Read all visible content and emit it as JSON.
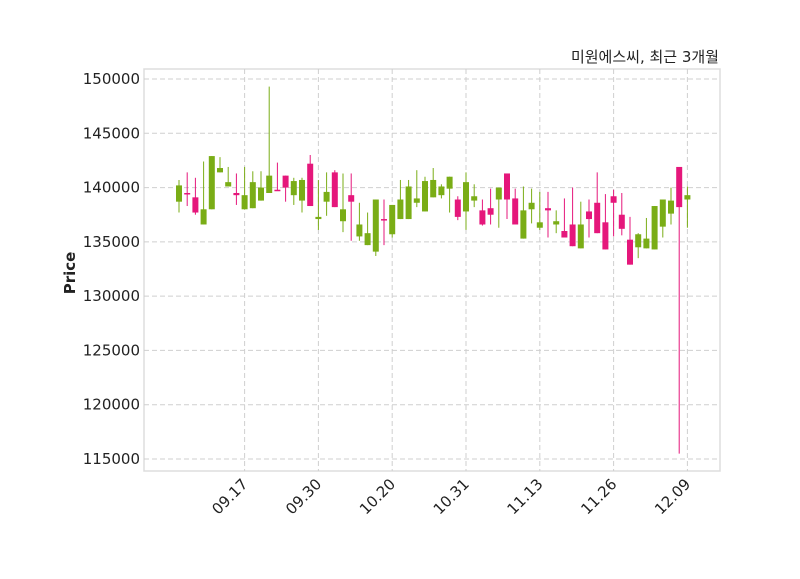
{
  "chart_data": {
    "type": "candlestick",
    "title": "미원에스씨, 최근 3개월",
    "xlabel": "",
    "ylabel": "Price",
    "ylim": [
      114000,
      151000
    ],
    "yticks": [
      115000,
      120000,
      125000,
      130000,
      135000,
      140000,
      145000,
      150000
    ],
    "xtick_labels": [
      {
        "index": 8,
        "label": "09.17"
      },
      {
        "index": 17,
        "label": "09.30"
      },
      {
        "index": 26,
        "label": "10.20"
      },
      {
        "index": 35,
        "label": "10.31"
      },
      {
        "index": 44,
        "label": "11.13"
      },
      {
        "index": 53,
        "label": "11.26"
      },
      {
        "index": 62,
        "label": "12.09"
      }
    ],
    "grid": true,
    "colors": {
      "up": "#e5177b",
      "down": "#7aad16",
      "grid": "#cfcfcf",
      "frame": "#dddddd"
    },
    "ohlc": [
      [
        140200,
        140700,
        137700,
        138700
      ],
      [
        139400,
        141400,
        138300,
        139500
      ],
      [
        137700,
        140900,
        137500,
        139100
      ],
      [
        138000,
        142400,
        136600,
        136600
      ],
      [
        142900,
        142900,
        138000,
        138000
      ],
      [
        141800,
        142800,
        141400,
        141400
      ],
      [
        140500,
        141900,
        140100,
        140100
      ],
      [
        139300,
        141300,
        138400,
        139500
      ],
      [
        139300,
        141900,
        138000,
        138000
      ],
      [
        140500,
        141500,
        138100,
        138100
      ],
      [
        140000,
        141500,
        138800,
        138800
      ],
      [
        141100,
        149300,
        139500,
        139500
      ],
      [
        139700,
        142300,
        139700,
        139800
      ],
      [
        140000,
        141100,
        138700,
        141100
      ],
      [
        140600,
        140900,
        138400,
        139300
      ],
      [
        140700,
        140900,
        137700,
        138800
      ],
      [
        138300,
        143000,
        138300,
        142200
      ],
      [
        137300,
        140700,
        136100,
        137100
      ],
      [
        139600,
        141400,
        137400,
        138700
      ],
      [
        138200,
        141600,
        138200,
        141400
      ],
      [
        138000,
        141300,
        135900,
        136900
      ],
      [
        138700,
        141300,
        135100,
        139300
      ],
      [
        136600,
        138600,
        135100,
        135500
      ],
      [
        135800,
        137700,
        134700,
        134700
      ],
      [
        138900,
        138900,
        133700,
        134100
      ],
      [
        137000,
        138900,
        134700,
        137100
      ],
      [
        138400,
        138400,
        135400,
        135700
      ],
      [
        138900,
        140700,
        137100,
        137100
      ],
      [
        140100,
        140700,
        137100,
        137100
      ],
      [
        139000,
        141600,
        138200,
        138600
      ],
      [
        140600,
        141000,
        137800,
        137800
      ],
      [
        140700,
        141800,
        139100,
        139100
      ],
      [
        140100,
        140300,
        139000,
        139300
      ],
      [
        141000,
        141000,
        137700,
        139900
      ],
      [
        137300,
        139200,
        137000,
        138900
      ],
      [
        140500,
        141400,
        136100,
        137800
      ],
      [
        139200,
        140300,
        138200,
        138800
      ],
      [
        136600,
        138900,
        136500,
        137900
      ],
      [
        137500,
        139900,
        136600,
        138100
      ],
      [
        140000,
        140000,
        136300,
        138900
      ],
      [
        138900,
        141300,
        137100,
        141300
      ],
      [
        136600,
        139900,
        136600,
        139000
      ],
      [
        137900,
        140100,
        135300,
        135300
      ],
      [
        138600,
        139900,
        136700,
        138000
      ],
      [
        136800,
        139600,
        136100,
        136300
      ],
      [
        137900,
        139600,
        135400,
        138100
      ],
      [
        136900,
        137900,
        135800,
        136600
      ],
      [
        135400,
        139000,
        135400,
        136000
      ],
      [
        134600,
        140000,
        134600,
        136600
      ],
      [
        136600,
        138700,
        134400,
        134400
      ],
      [
        137100,
        138900,
        135400,
        137800
      ],
      [
        135800,
        141400,
        135800,
        138600
      ],
      [
        134300,
        139400,
        134300,
        136800
      ],
      [
        138600,
        139800,
        135500,
        139200
      ],
      [
        136200,
        139500,
        135600,
        137500
      ],
      [
        132900,
        137300,
        132900,
        135200
      ],
      [
        135700,
        135800,
        133500,
        134500
      ],
      [
        135300,
        137200,
        134400,
        134400
      ],
      [
        138300,
        138300,
        134300,
        134300
      ],
      [
        138900,
        138900,
        135400,
        136400
      ],
      [
        138800,
        140000,
        136600,
        137600
      ],
      [
        138200,
        141900,
        115500,
        141900
      ],
      [
        139300,
        140100,
        136300,
        138900
      ]
    ]
  }
}
